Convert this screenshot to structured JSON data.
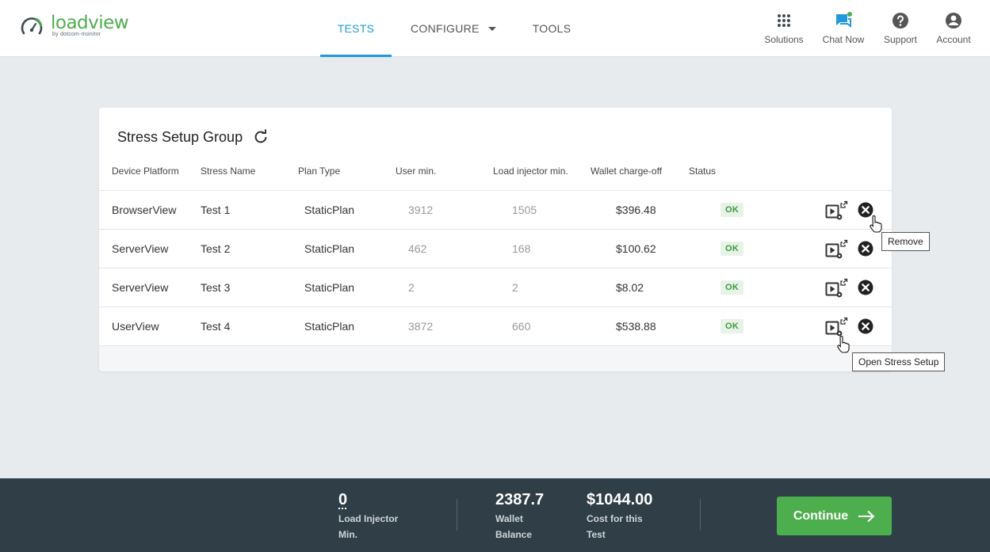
{
  "app": {
    "logo_word": "loadview",
    "logo_sub": "by dotcom-monitor"
  },
  "nav": {
    "tests": "TESTS",
    "configure": "CONFIGURE",
    "tools": "TOOLS"
  },
  "topright": {
    "solutions": "Solutions",
    "chat": "Chat Now",
    "support": "Support",
    "account": "Account"
  },
  "card": {
    "title": "Stress Setup Group",
    "columns": [
      "Device Platform",
      "Stress Name",
      "Plan Type",
      "User min.",
      "Load injector min.",
      "Wallet charge-off",
      "Status"
    ],
    "rows": [
      {
        "platform": "BrowserView",
        "name": "Test 1",
        "plan": "StaticPlan",
        "user_min": "3912",
        "injector_min": "1505",
        "charge": "$396.48",
        "status": "OK"
      },
      {
        "platform": "ServerView",
        "name": "Test 2",
        "plan": "StaticPlan",
        "user_min": "462",
        "injector_min": "168",
        "charge": "$100.62",
        "status": "OK"
      },
      {
        "platform": "ServerView",
        "name": "Test 3",
        "plan": "StaticPlan",
        "user_min": "2",
        "injector_min": "2",
        "charge": "$8.02",
        "status": "OK"
      },
      {
        "platform": "UserView",
        "name": "Test 4",
        "plan": "StaticPlan",
        "user_min": "3872",
        "injector_min": "660",
        "charge": "$538.88",
        "status": "OK"
      }
    ]
  },
  "tooltips": {
    "remove": "Remove",
    "open": "Open Stress Setup"
  },
  "footer": {
    "injector_value": "0",
    "injector_label_1": "Load Injector",
    "injector_label_2": "Min.",
    "wallet_value": "2387.7",
    "wallet_label_1": "Wallet",
    "wallet_label_2": "Balance",
    "cost_value": "$1044.00",
    "cost_label_1": "Cost for this",
    "cost_label_2": "Test",
    "continue": "Continue"
  },
  "colors": {
    "accent": "#1e9be0",
    "brand_green": "#4cae4c",
    "footer_bg": "#2f3e47"
  }
}
